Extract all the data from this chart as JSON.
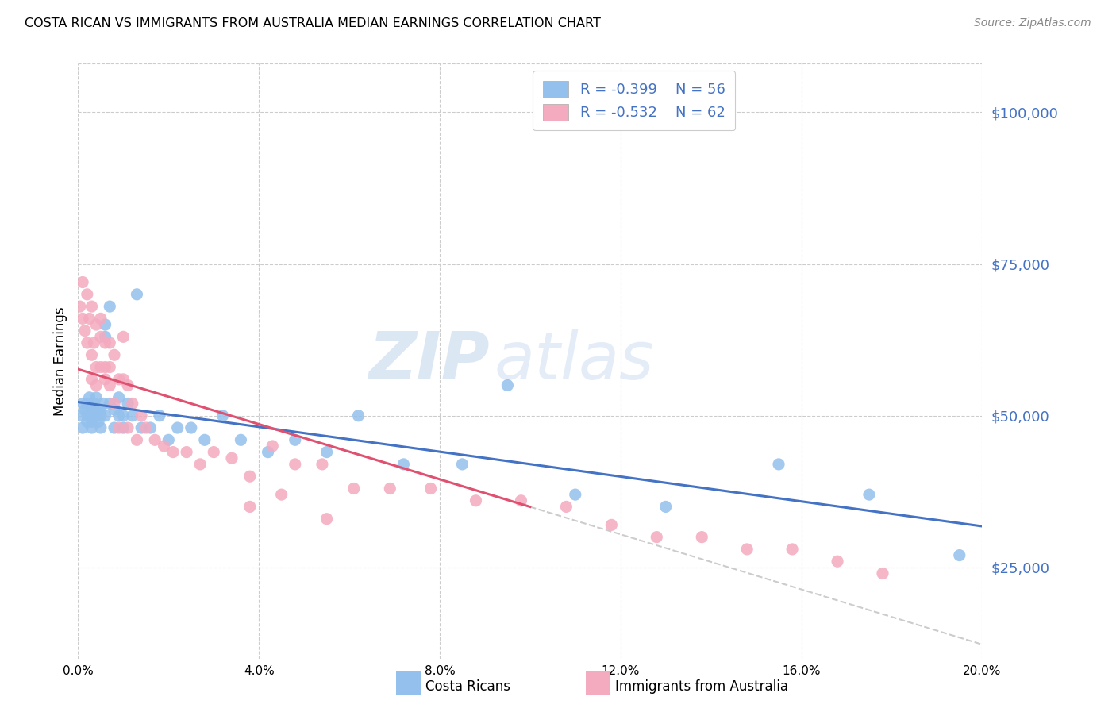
{
  "title": "COSTA RICAN VS IMMIGRANTS FROM AUSTRALIA MEDIAN EARNINGS CORRELATION CHART",
  "source": "Source: ZipAtlas.com",
  "ylabel": "Median Earnings",
  "ytick_labels": [
    "$25,000",
    "$50,000",
    "$75,000",
    "$100,000"
  ],
  "ytick_values": [
    25000,
    50000,
    75000,
    100000
  ],
  "xmin": 0.0,
  "xmax": 0.2,
  "ymin": 10000,
  "ymax": 108000,
  "legend_blue_r": "R = -0.399",
  "legend_blue_n": "N = 56",
  "legend_pink_r": "R = -0.532",
  "legend_pink_n": "N = 62",
  "legend_label_blue": "Costa Ricans",
  "legend_label_pink": "Immigrants from Australia",
  "blue_color": "#93C0ED",
  "pink_color": "#F4AABF",
  "blue_line_color": "#4472C4",
  "pink_line_color": "#E05070",
  "watermark_zip": "ZIP",
  "watermark_atlas": "atlas",
  "blue_scatter_x": [
    0.0005,
    0.001,
    0.001,
    0.0015,
    0.002,
    0.002,
    0.002,
    0.0025,
    0.003,
    0.003,
    0.003,
    0.003,
    0.0035,
    0.004,
    0.004,
    0.004,
    0.0045,
    0.005,
    0.005,
    0.005,
    0.0055,
    0.006,
    0.006,
    0.006,
    0.007,
    0.007,
    0.008,
    0.008,
    0.009,
    0.009,
    0.01,
    0.01,
    0.011,
    0.012,
    0.013,
    0.014,
    0.016,
    0.018,
    0.02,
    0.022,
    0.025,
    0.028,
    0.032,
    0.036,
    0.042,
    0.048,
    0.055,
    0.062,
    0.072,
    0.085,
    0.095,
    0.11,
    0.13,
    0.155,
    0.175,
    0.195
  ],
  "blue_scatter_y": [
    50000,
    52000,
    48000,
    51000,
    50000,
    52000,
    49000,
    53000,
    50000,
    51000,
    49000,
    48000,
    52000,
    51000,
    50000,
    53000,
    49000,
    51000,
    50000,
    48000,
    52000,
    65000,
    63000,
    50000,
    68000,
    52000,
    51000,
    48000,
    50000,
    53000,
    50000,
    48000,
    52000,
    50000,
    70000,
    48000,
    48000,
    50000,
    46000,
    48000,
    48000,
    46000,
    50000,
    46000,
    44000,
    46000,
    44000,
    50000,
    42000,
    42000,
    55000,
    37000,
    35000,
    42000,
    37000,
    27000
  ],
  "pink_scatter_x": [
    0.0004,
    0.001,
    0.001,
    0.0015,
    0.002,
    0.002,
    0.0025,
    0.003,
    0.003,
    0.003,
    0.0035,
    0.004,
    0.004,
    0.004,
    0.005,
    0.005,
    0.005,
    0.006,
    0.006,
    0.006,
    0.007,
    0.007,
    0.007,
    0.008,
    0.008,
    0.009,
    0.009,
    0.01,
    0.01,
    0.011,
    0.011,
    0.012,
    0.013,
    0.014,
    0.015,
    0.017,
    0.019,
    0.021,
    0.024,
    0.027,
    0.03,
    0.034,
    0.038,
    0.043,
    0.048,
    0.054,
    0.061,
    0.069,
    0.078,
    0.088,
    0.098,
    0.108,
    0.118,
    0.128,
    0.138,
    0.148,
    0.158,
    0.168,
    0.178,
    0.038,
    0.045,
    0.055
  ],
  "pink_scatter_y": [
    68000,
    72000,
    66000,
    64000,
    62000,
    70000,
    66000,
    60000,
    56000,
    68000,
    62000,
    65000,
    58000,
    55000,
    63000,
    58000,
    66000,
    56000,
    62000,
    58000,
    62000,
    55000,
    58000,
    52000,
    60000,
    56000,
    48000,
    63000,
    56000,
    55000,
    48000,
    52000,
    46000,
    50000,
    48000,
    46000,
    45000,
    44000,
    44000,
    42000,
    44000,
    43000,
    40000,
    45000,
    42000,
    42000,
    38000,
    38000,
    38000,
    36000,
    36000,
    35000,
    32000,
    30000,
    30000,
    28000,
    28000,
    26000,
    24000,
    35000,
    37000,
    33000
  ]
}
